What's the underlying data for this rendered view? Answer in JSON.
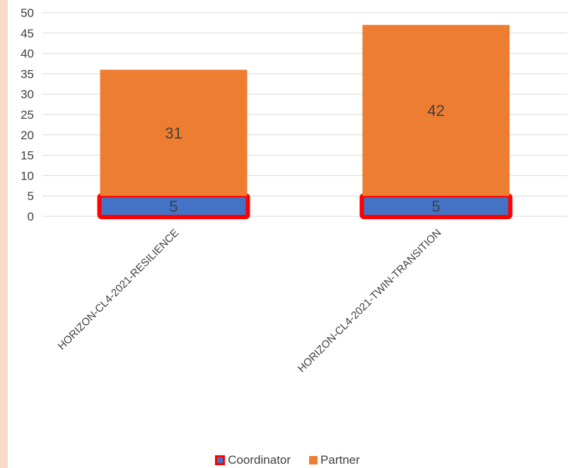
{
  "chart_data": {
    "type": "bar",
    "stacked": true,
    "categories": [
      "HORIZON-CL4-2021-RESILIENCE",
      "HORIZON-CL4-2021-TWIN-TRANSITION"
    ],
    "series": [
      {
        "name": "Coordinator",
        "values": [
          5,
          5
        ],
        "color": "#4472c4",
        "highlight_border": "#ff0000"
      },
      {
        "name": "Partner",
        "values": [
          31,
          42
        ],
        "color": "#ed7d31"
      }
    ],
    "ylim": [
      0,
      50
    ],
    "yticks": [
      0,
      5,
      10,
      15,
      20,
      25,
      30,
      35,
      40,
      45,
      50
    ],
    "grid": true,
    "legend": "bottom",
    "data_labels": true
  }
}
